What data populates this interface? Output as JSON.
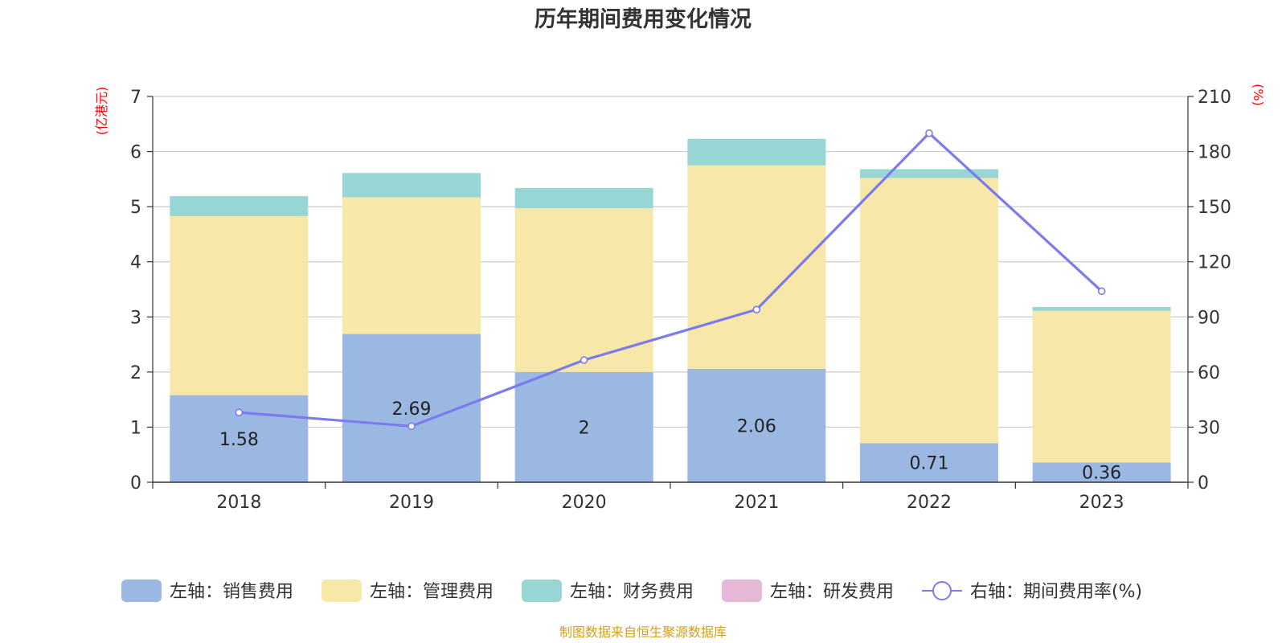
{
  "chart_data": {
    "type": "bar",
    "title": "历年期间费用变化情况",
    "categories": [
      "2018",
      "2019",
      "2020",
      "2021",
      "2022",
      "2023"
    ],
    "left_axis": {
      "unit": "(亿港元)",
      "ylim": [
        0,
        7
      ],
      "ticks": [
        "0",
        "1",
        "2",
        "3",
        "4",
        "5",
        "6",
        "7"
      ]
    },
    "right_axis": {
      "unit": "(%)",
      "ylim": [
        0,
        210
      ],
      "ticks": [
        "0",
        "30",
        "60",
        "90",
        "120",
        "150",
        "180",
        "210"
      ]
    },
    "stacked": true,
    "grid": true,
    "legend_position": "bottom",
    "series": [
      {
        "name": "左轴：销售费用",
        "axis": "left",
        "kind": "bar",
        "color": "#9bb8e3",
        "values": [
          1.58,
          2.69,
          2,
          2.06,
          0.71,
          0.36
        ],
        "labels": [
          "1.58",
          "2.69",
          "2",
          "2.06",
          "0.71",
          "0.36"
        ]
      },
      {
        "name": "左轴：管理费用",
        "axis": "left",
        "kind": "bar",
        "color": "#f7e7a9",
        "values": [
          3.25,
          2.48,
          2.97,
          3.69,
          4.81,
          2.75
        ]
      },
      {
        "name": "左轴：财务费用",
        "axis": "left",
        "kind": "bar",
        "color": "#98d5d5",
        "values": [
          0.36,
          0.44,
          0.37,
          0.48,
          0.16,
          0.07
        ]
      },
      {
        "name": "左轴：研发费用",
        "axis": "left",
        "kind": "bar",
        "color": "#e6b8d8",
        "values": [
          0,
          0,
          0,
          0,
          0,
          0
        ]
      },
      {
        "name": "右轴：期间费用率(%)",
        "axis": "right",
        "kind": "line",
        "color": "#7b7bef",
        "values": [
          38,
          30.5,
          66.5,
          94,
          190,
          104
        ]
      }
    ]
  },
  "footer": {
    "source": "制图数据来自恒生聚源数据库"
  }
}
